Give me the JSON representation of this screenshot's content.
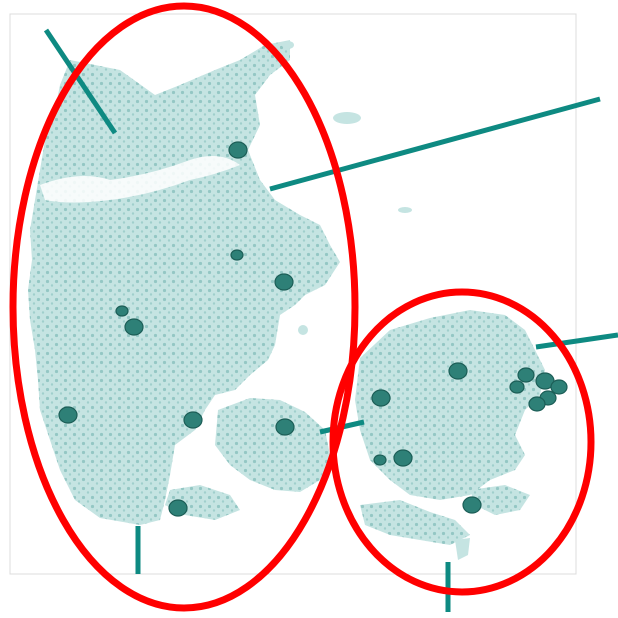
{
  "map": {
    "labels": [],
    "land_color": "#c5e4e2",
    "dot_color": "#8ec4c1",
    "city_color": "#2e8077",
    "city_stroke": "#1c5e57",
    "annotation_line_color": "#0e8a82",
    "highlight_ellipse_color": "#ff0000",
    "frame_color": "#dcdcdc",
    "regions": [
      "jutland-funen",
      "zealand"
    ],
    "marker_count": 20
  }
}
